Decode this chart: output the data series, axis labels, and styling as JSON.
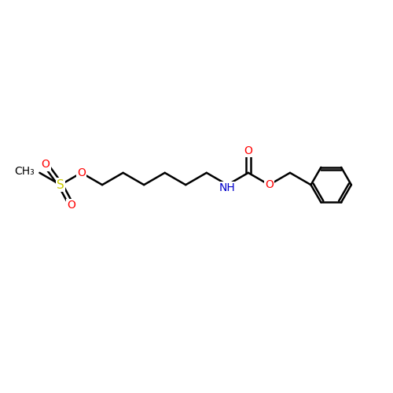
{
  "background_color": "#ffffff",
  "bond_color": "#000000",
  "atom_colors": {
    "O": "#ff0000",
    "N": "#0000cc",
    "S": "#cccc00",
    "C": "#000000",
    "H": "#000000"
  },
  "font_size": 10,
  "fig_width": 5.0,
  "fig_height": 5.0,
  "dpi": 100,
  "xlim": [
    0,
    10
  ],
  "ylim": [
    0,
    10
  ]
}
